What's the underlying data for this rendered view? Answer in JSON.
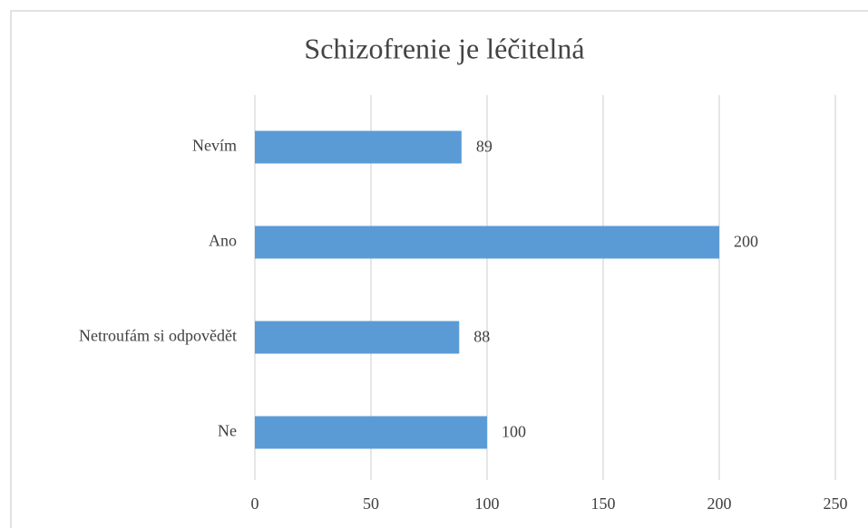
{
  "chart_data": {
    "type": "barh",
    "title": "Schizofrenie  je léčitelná",
    "categories": [
      "Nevím",
      "Ano",
      "Netroufám si odpovědět",
      "Ne"
    ],
    "values": [
      89,
      200,
      88,
      100
    ],
    "color": "#5b9bd5",
    "xlim": [
      0,
      250
    ],
    "xticks": [
      0,
      50,
      100,
      150,
      200,
      250
    ],
    "grid": true
  }
}
